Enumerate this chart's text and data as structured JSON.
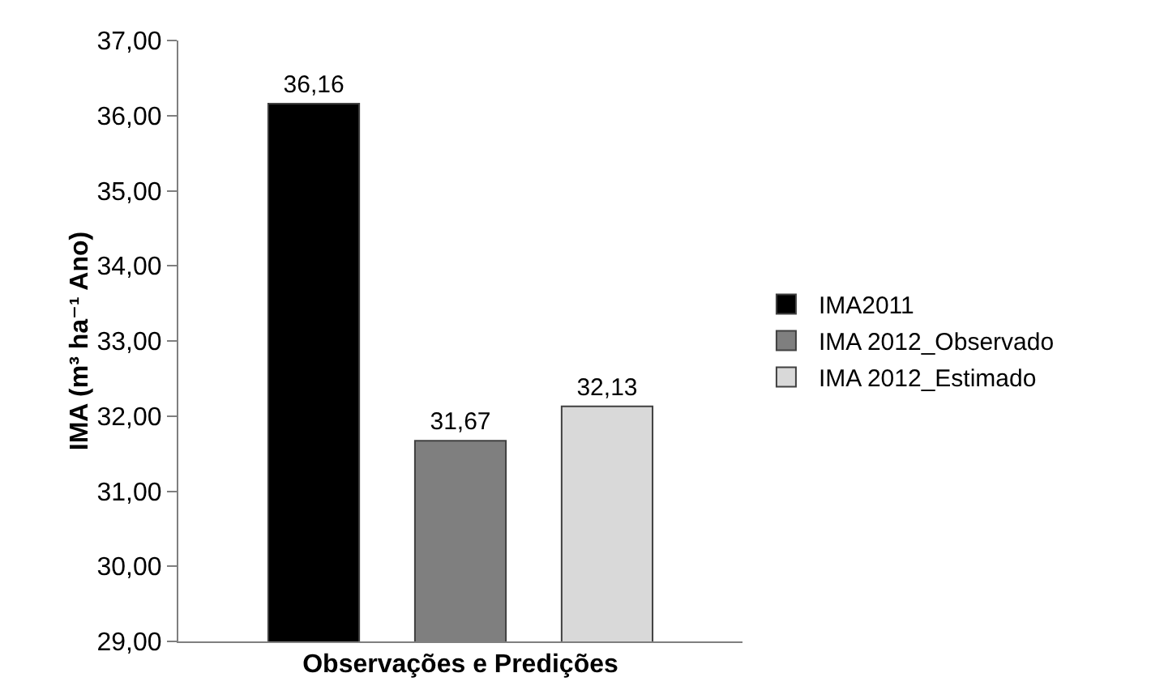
{
  "chart_data": {
    "type": "bar",
    "xlabel": "Observações e Predições",
    "ylabel": "IMA (m³ ha⁻¹ Ano)",
    "categories": [
      null
    ],
    "series": [
      {
        "name": "IMA2011",
        "color": "#000000",
        "values": [
          36.16
        ],
        "value_labels": [
          "36,16"
        ]
      },
      {
        "name": "IMA 2012_Observado",
        "color": "#7f7f7f",
        "values": [
          31.67
        ],
        "value_labels": [
          "31,67"
        ]
      },
      {
        "name": "IMA 2012_Estimado",
        "color": "#d9d9d9",
        "values": [
          32.13
        ],
        "value_labels": [
          "32,13"
        ]
      }
    ],
    "ylim": [
      29,
      37
    ],
    "yticks": [
      {
        "value": 29,
        "label": "29,00"
      },
      {
        "value": 30,
        "label": "30,00"
      },
      {
        "value": 31,
        "label": "31,00"
      },
      {
        "value": 32,
        "label": "32,00"
      },
      {
        "value": 33,
        "label": "33,00"
      },
      {
        "value": 34,
        "label": "34,00"
      },
      {
        "value": 35,
        "label": "35,00"
      },
      {
        "value": 36,
        "label": "36,00"
      },
      {
        "value": 37,
        "label": "37,00"
      }
    ],
    "grid": false,
    "legend": "right"
  }
}
